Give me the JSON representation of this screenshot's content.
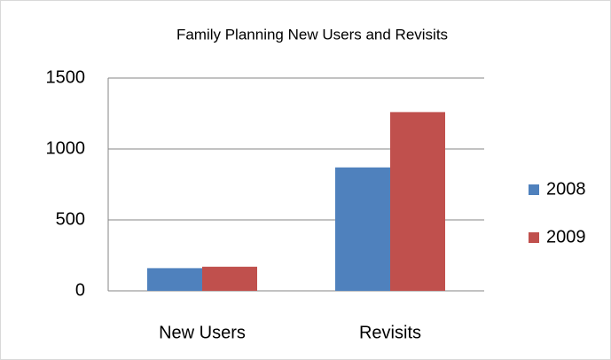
{
  "chart_data": {
    "type": "bar",
    "title": "Family Planning New Users and Revisits",
    "categories": [
      "New Users",
      "Revisits"
    ],
    "series": [
      {
        "name": "2008",
        "color": "#4f81bd",
        "values": [
          160,
          870
        ]
      },
      {
        "name": "2009",
        "color": "#c0504d",
        "values": [
          170,
          1260
        ]
      }
    ],
    "ylim": [
      0,
      1500
    ],
    "yticks": [
      0,
      500,
      1000,
      1500
    ],
    "grid": true,
    "legend": "right"
  }
}
